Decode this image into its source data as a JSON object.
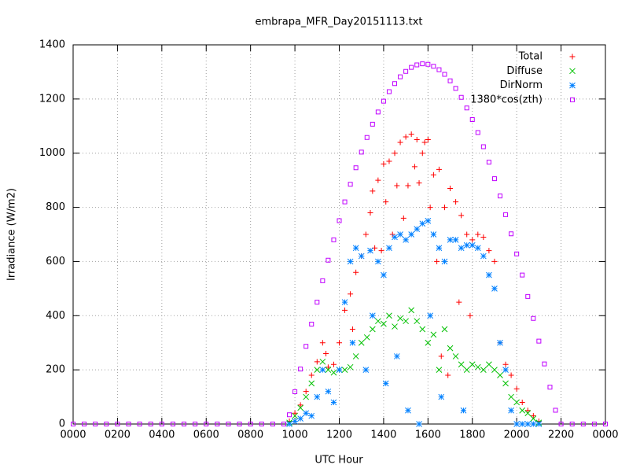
{
  "chart_data": {
    "type": "scatter",
    "title": "embrapa_MFR_Day20151113.txt",
    "x_label": "UTC Hour",
    "y_label": "Irradiance (W/m2)",
    "xlim": [
      0,
      24
    ],
    "ylim": [
      0,
      1400
    ],
    "xticks": [
      {
        "value": 0,
        "label": "0000"
      },
      {
        "value": 2,
        "label": "0200"
      },
      {
        "value": 4,
        "label": "0400"
      },
      {
        "value": 6,
        "label": "0600"
      },
      {
        "value": 8,
        "label": "0800"
      },
      {
        "value": 10,
        "label": "1000"
      },
      {
        "value": 12,
        "label": "1200"
      },
      {
        "value": 14,
        "label": "1400"
      },
      {
        "value": 16,
        "label": "1600"
      },
      {
        "value": 18,
        "label": "1800"
      },
      {
        "value": 20,
        "label": "2000"
      },
      {
        "value": 22,
        "label": "2200"
      },
      {
        "value": 24,
        "label": "0000"
      }
    ],
    "yticks": [
      0,
      200,
      400,
      600,
      800,
      1000,
      1200,
      1400
    ],
    "grid": true,
    "legend": "top-right",
    "series": [
      {
        "name": "Total",
        "color": "#ff0000",
        "marker": "plus",
        "x": [
          9.75,
          10,
          10.25,
          10.5,
          10.75,
          11,
          11.25,
          11.4,
          11.5,
          11.75,
          12,
          12.25,
          12.5,
          12.6,
          12.75,
          13,
          13.2,
          13.4,
          13.5,
          13.6,
          13.75,
          13.9,
          14,
          14.1,
          14.25,
          14.4,
          14.5,
          14.6,
          14.75,
          14.9,
          15,
          15.1,
          15.25,
          15.4,
          15.5,
          15.6,
          15.75,
          15.85,
          16,
          16.1,
          16.25,
          16.4,
          16.5,
          16.6,
          16.75,
          16.9,
          17,
          17.25,
          17.4,
          17.5,
          17.75,
          17.9,
          18,
          18.25,
          18.5,
          18.75,
          19,
          19.25,
          19.5,
          19.75,
          20,
          20.25,
          20.5,
          20.75,
          21
        ],
        "values": [
          10,
          40,
          70,
          120,
          180,
          230,
          300,
          260,
          210,
          220,
          300,
          420,
          480,
          350,
          560,
          620,
          700,
          780,
          860,
          650,
          900,
          640,
          960,
          820,
          970,
          700,
          1000,
          880,
          1040,
          760,
          1060,
          880,
          1070,
          950,
          1050,
          890,
          1000,
          1040,
          1050,
          800,
          920,
          600,
          940,
          250,
          800,
          180,
          870,
          820,
          450,
          770,
          700,
          400,
          680,
          700,
          690,
          640,
          600,
          300,
          220,
          180,
          130,
          80,
          50,
          30,
          10
        ]
      },
      {
        "name": "Diffuse",
        "color": "#00c000",
        "marker": "cross",
        "x": [
          9.75,
          10,
          10.25,
          10.5,
          10.75,
          11,
          11.25,
          11.5,
          11.75,
          12,
          12.25,
          12.5,
          12.75,
          13,
          13.25,
          13.5,
          13.75,
          14,
          14.25,
          14.5,
          14.75,
          15,
          15.25,
          15.5,
          15.75,
          16,
          16.25,
          16.5,
          16.75,
          17,
          17.25,
          17.5,
          17.75,
          18,
          18.25,
          18.5,
          18.75,
          19,
          19.25,
          19.5,
          19.75,
          20,
          20.25,
          20.5,
          20.75,
          21
        ],
        "values": [
          5,
          30,
          60,
          100,
          150,
          200,
          230,
          200,
          190,
          200,
          200,
          210,
          250,
          300,
          320,
          350,
          380,
          370,
          400,
          360,
          390,
          380,
          420,
          380,
          350,
          300,
          330,
          200,
          350,
          280,
          250,
          220,
          200,
          220,
          210,
          200,
          220,
          200,
          180,
          150,
          100,
          80,
          50,
          40,
          20,
          5
        ]
      },
      {
        "name": "DirNorm",
        "color": "#0080ff",
        "marker": "star",
        "x": [
          9.75,
          10,
          10.25,
          10.5,
          10.75,
          11,
          11.25,
          11.5,
          11.75,
          12,
          12.25,
          12.5,
          12.6,
          12.75,
          13,
          13.2,
          13.4,
          13.5,
          13.75,
          14,
          14.1,
          14.25,
          14.5,
          14.6,
          14.75,
          15,
          15.1,
          15.25,
          15.5,
          15.6,
          15.75,
          16,
          16.1,
          16.25,
          16.5,
          16.6,
          16.75,
          17,
          17.25,
          17.5,
          17.6,
          17.75,
          18,
          18.25,
          18.5,
          18.75,
          19,
          19.25,
          19.5,
          19.75,
          20,
          20.25,
          20.5,
          20.75,
          21
        ],
        "values": [
          0,
          10,
          20,
          40,
          30,
          100,
          200,
          120,
          80,
          200,
          450,
          600,
          300,
          650,
          620,
          200,
          640,
          400,
          600,
          550,
          150,
          650,
          690,
          250,
          700,
          680,
          50,
          700,
          720,
          0,
          740,
          750,
          400,
          700,
          650,
          100,
          600,
          680,
          680,
          650,
          50,
          660,
          660,
          650,
          620,
          550,
          500,
          300,
          200,
          50,
          0,
          0,
          0,
          0,
          0
        ]
      },
      {
        "name": "1380*cos(zth)",
        "color": "#c000ff",
        "marker": "square",
        "x": [
          0,
          0.5,
          1,
          1.5,
          2,
          2.5,
          3,
          3.5,
          4,
          4.5,
          5,
          5.5,
          6,
          6.5,
          7,
          7.5,
          8,
          8.5,
          9,
          9.5,
          9.75,
          10,
          10.25,
          10.5,
          10.75,
          11,
          11.25,
          11.5,
          11.75,
          12,
          12.25,
          12.5,
          12.75,
          13,
          13.25,
          13.5,
          13.75,
          14,
          14.25,
          14.5,
          14.75,
          15,
          15.25,
          15.5,
          15.75,
          16,
          16.25,
          16.5,
          16.75,
          17,
          17.25,
          17.5,
          17.75,
          18,
          18.25,
          18.5,
          18.75,
          19,
          19.25,
          19.5,
          19.75,
          20,
          20.25,
          20.5,
          20.75,
          21,
          21.25,
          21.5,
          21.75,
          22,
          22.5,
          23,
          23.5,
          24
        ],
        "values": [
          0,
          0,
          0,
          0,
          0,
          0,
          0,
          0,
          0,
          0,
          0,
          0,
          0,
          0,
          0,
          0,
          0,
          0,
          0,
          0,
          34,
          119,
          203,
          287,
          369,
          450,
          529,
          605,
          680,
          751,
          820,
          885,
          946,
          1004,
          1058,
          1107,
          1152,
          1192,
          1227,
          1257,
          1282,
          1302,
          1317,
          1326,
          1330,
          1328,
          1321,
          1308,
          1291,
          1267,
          1239,
          1206,
          1167,
          1124,
          1076,
          1024,
          967,
          906,
          842,
          773,
          702,
          628,
          550,
          471,
          390,
          306,
          222,
          136,
          51,
          0,
          0,
          0,
          0,
          0
        ]
      }
    ]
  }
}
